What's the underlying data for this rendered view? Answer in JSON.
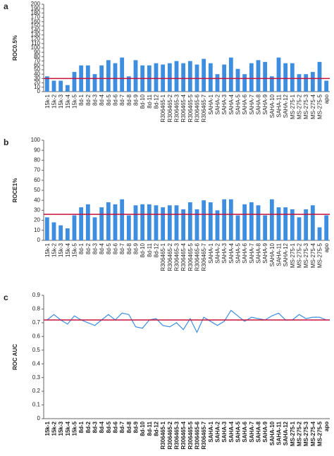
{
  "chart_data": [
    {
      "type": "bar",
      "panel": "a",
      "ylabel": "ROC0.5%",
      "color": "#3d8ee0",
      "categories": [
        "15k-1",
        "15k-2",
        "15k-3",
        "15k-4",
        "15k-5",
        "8d-1",
        "8d-2",
        "8d-3",
        "8d-4",
        "8d-5",
        "8d-6",
        "8d-7",
        "8d-8",
        "8d-9",
        "8d-10",
        "8d-11",
        "8d-12",
        "R306465-1",
        "R306465-2",
        "R306465-3",
        "R306465-4",
        "R306465-5",
        "R306465-6",
        "R306465-7",
        "SAHA-1",
        "SAHA-2",
        "SAHA-3",
        "SAHA-4",
        "SAHA-5",
        "SAHA-6",
        "SAHA-7",
        "SAHA-8",
        "SAHA-9",
        "SAHA-10",
        "SAHA-11",
        "SAHA-12",
        "MS-275-1",
        "MS-275-2",
        "MS-275-3",
        "MS-275-4",
        "MS-275-5",
        "apo"
      ],
      "values": [
        35,
        25,
        25,
        15,
        45,
        60,
        60,
        40,
        60,
        72,
        65,
        78,
        35,
        72,
        60,
        60,
        65,
        62,
        65,
        70,
        65,
        70,
        62,
        75,
        65,
        40,
        62,
        78,
        52,
        40,
        65,
        72,
        68,
        35,
        78,
        65,
        65,
        40,
        40,
        45,
        68,
        25
      ],
      "ylim": [
        0,
        200
      ],
      "yticks": [
        0,
        10,
        20,
        30,
        40,
        50,
        60,
        70,
        80,
        90,
        100,
        110,
        120,
        130,
        140,
        150,
        160,
        170,
        180,
        190,
        200
      ],
      "hline": {
        "value": 30,
        "color": "#c8103c"
      }
    },
    {
      "type": "bar",
      "panel": "b",
      "ylabel": "ROCE1%",
      "color": "#3d8ee0",
      "categories": [
        "15k-1",
        "15k-2",
        "15k-3",
        "15k-4",
        "15k-5",
        "8d-1",
        "8d-2",
        "8d-3",
        "8d-4",
        "8d-5",
        "8d-6",
        "8d-7",
        "8d-8",
        "8d-9",
        "8d-10",
        "8d-11",
        "8d-12",
        "R306465-1",
        "R306465-2",
        "R306465-3",
        "R306465-4",
        "R306465-5",
        "R306465-6",
        "R306465-7",
        "SAHA-1",
        "SAHA-2",
        "SAHA-3",
        "SAHA-4",
        "SAHA-5",
        "SAHA-6",
        "SAHA-7",
        "SAHA-8",
        "SAHA-9",
        "SAHA-10",
        "SAHA-11",
        "SAHA-12",
        "MS-275-1",
        "MS-275-2",
        "MS-275-3",
        "MS-275-4",
        "MS-275-5",
        "apo"
      ],
      "values": [
        23,
        18,
        15,
        12,
        25,
        33,
        36,
        23,
        33,
        38,
        36,
        41,
        25,
        35,
        36,
        36,
        35,
        33,
        35,
        35,
        31,
        38,
        31,
        40,
        38,
        30,
        41,
        41,
        25,
        36,
        38,
        35,
        25,
        41,
        33,
        33,
        31,
        23,
        31,
        35,
        13,
        25
      ],
      "ylim": [
        0,
        100
      ],
      "yticks": [
        0,
        10,
        20,
        30,
        40,
        50,
        60,
        70,
        80,
        90,
        100
      ],
      "hline": {
        "value": 26,
        "color": "#c8103c"
      }
    },
    {
      "type": "line",
      "panel": "c",
      "ylabel": "ROC AUC",
      "color": "#3d8ee0",
      "categories": [
        "15k-1",
        "15k-2",
        "15k-3",
        "15k-4",
        "15k-5",
        "8d-1",
        "8d-2",
        "8d-3",
        "8d-4",
        "8d-5",
        "8d-6",
        "8d-7",
        "8d-8",
        "8d-9",
        "8d-10",
        "8d-11",
        "8d-12",
        "R306465-1",
        "R306465-2",
        "R306465-3",
        "R306465-4",
        "R306465-5",
        "R306465-6",
        "R306465-7",
        "SAHA-1",
        "SAHA-2",
        "SAHA-3",
        "SAHA-4",
        "SAHA-5",
        "SAHA-6",
        "SAHA-7",
        "SAHA-8",
        "SAHA-9",
        "SAHA-10",
        "SAHA-11",
        "SAHA-12",
        "MS-275-1",
        "MS-275-2",
        "MS-275-3",
        "MS-275-4",
        "MS-275-5",
        "apo"
      ],
      "values": [
        0.72,
        0.76,
        0.72,
        0.69,
        0.75,
        0.72,
        0.7,
        0.68,
        0.72,
        0.76,
        0.72,
        0.77,
        0.76,
        0.67,
        0.66,
        0.72,
        0.73,
        0.68,
        0.67,
        0.7,
        0.65,
        0.73,
        0.63,
        0.74,
        0.71,
        0.68,
        0.71,
        0.79,
        0.75,
        0.71,
        0.74,
        0.73,
        0.72,
        0.75,
        0.77,
        0.72,
        0.72,
        0.76,
        0.73,
        0.74,
        0.74,
        0.72
      ],
      "ylim": [
        0,
        0.9
      ],
      "yticks": [
        0,
        0.1,
        0.2,
        0.3,
        0.4,
        0.5,
        0.6,
        0.7,
        0.8,
        0.9
      ],
      "hline": {
        "value": 0.72,
        "color": "#c8103c"
      },
      "bold_labels": true
    }
  ]
}
